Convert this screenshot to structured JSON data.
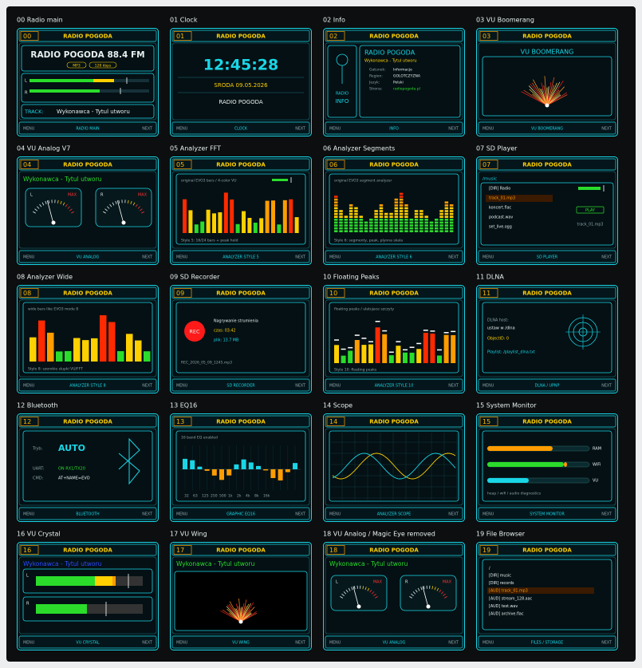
{
  "panels": [
    {
      "label": "00 Radio main",
      "number": "00",
      "title": "RADIO POGODA",
      "texts": [
        "RADIO POGODA 88.4 FM",
        "MP3",
        "128 kbps",
        "L",
        "R",
        "TRACK:",
        "Wykonawca - Tytul utworu"
      ],
      "footer": [
        "MENU",
        "RADIO MAIN",
        "NEXT"
      ]
    },
    {
      "label": "01 Clock",
      "number": "01",
      "title": "RADIO POGODA",
      "texts": [
        "12:45:28",
        "SRODA  09.05.2026",
        "RADIO POGODA"
      ],
      "footer": [
        "MENU",
        "CLOCK",
        "NEXT"
      ]
    },
    {
      "label": "02 Info",
      "number": "02",
      "title": "RADIO POGODA",
      "texts": [
        "RADIO",
        "INFO",
        "RADIO POGODA",
        "Wykonawca - Tytul utworu",
        "Gatunek:",
        "Informacje",
        "Region:",
        "GOLOTCZYZNA",
        "Jezyk:",
        "Polski",
        "Strona:",
        "radiopogoda.pl"
      ],
      "footer": [
        "MENU",
        "INFO",
        "NEXT"
      ]
    },
    {
      "label": "03 VU Boomerang",
      "number": "03",
      "title": "RADIO POGODA",
      "texts": [
        "VU BOOMERANG"
      ],
      "footer": [
        "MENU",
        "VU BOOMERANG",
        "NEXT"
      ]
    },
    {
      "label": "04 VU Analog V7",
      "number": "04",
      "title": "RADIO POGODA",
      "texts": [
        "Wykonawca - Tytul utworu",
        "L",
        "MAX",
        "R",
        "MAX"
      ],
      "footer": [
        "MENU",
        "VU ANALOG",
        "NEXT"
      ]
    },
    {
      "label": "05 Analyzer FFT",
      "number": "05",
      "title": "RADIO POGODA",
      "texts": [
        "original EVO3 bars / 4-color VU",
        "Style 5: 16/24 bars + peak hold"
      ],
      "footer": [
        "MENU",
        "ANALYZER STYLE 5",
        "NEXT"
      ]
    },
    {
      "label": "06 Analyzer Segments",
      "number": "06",
      "title": "RADIO POGODA",
      "texts": [
        "original EVO3 segment analyzer",
        "Style 6: segmenty, peak, plynna skala"
      ],
      "footer": [
        "MENU",
        "ANALYZER STYLE 6",
        "NEXT"
      ]
    },
    {
      "label": "07 SD Player",
      "number": "07",
      "title": "RADIO POGODA",
      "texts": [
        "/music",
        "[DIR] Radio",
        "track_01.mp3",
        "koncert.flac",
        "podcast.wav",
        "set_live.ogg",
        "PLAY",
        "track_01.mp3"
      ],
      "footer": [
        "MENU",
        "SD PLAYER",
        "NEXT"
      ]
    },
    {
      "label": "08 Analyzer Wide",
      "number": "08",
      "title": "RADIO POGODA",
      "texts": [
        "wide bars like EVO3 mode 8",
        "Style 8: szerokie slupki VU/FFT"
      ],
      "footer": [
        "MENU",
        "ANALYZER STYLE 8",
        "NEXT"
      ]
    },
    {
      "label": "09 SD Recorder",
      "number": "09",
      "title": "RADIO POGODA",
      "texts": [
        "REC",
        "Nagrywanie strumienia",
        "czas: 03:42",
        "plik: 13.7 MB",
        "REC_2026_05_09_1245.mp3"
      ],
      "footer": [
        "MENU",
        "SD RECORDER",
        "NEXT"
      ]
    },
    {
      "label": "10 Floating Peaks",
      "number": "10",
      "title": "RADIO POGODA",
      "texts": [
        "floating peaks / ulatujace szczyty",
        "Style 10: floating peaks"
      ],
      "footer": [
        "MENU",
        "ANALYZER STYLE 10",
        "NEXT"
      ]
    },
    {
      "label": "11 DLNA",
      "number": "11",
      "title": "RADIO POGODA",
      "texts": [
        "DLNA host:",
        "ustaw w /dlna",
        "ObjectID: 0",
        "Playlist: /playlist_dlna.txt"
      ],
      "footer": [
        "MENU",
        "DLNA / UPNP",
        "NEXT"
      ]
    },
    {
      "label": "12 Bluetooth",
      "number": "12",
      "title": "RADIO POGODA",
      "texts": [
        "Tryb:",
        "AUTO",
        "UART:",
        "ON RX1/TX20",
        "CMD:",
        "AT+NAME=EVO"
      ],
      "footer": [
        "MENU",
        "BLUETOOTH",
        "NEXT"
      ]
    },
    {
      "label": "13 EQ16",
      "number": "13",
      "title": "RADIO POGODA",
      "texts": [
        "16 band EQ enabled",
        "32",
        "63",
        "125",
        "250",
        "500",
        "1k",
        "2k",
        "4k",
        "8k",
        "16k"
      ],
      "footer": [
        "MENU",
        "GRAPHIC EQ16",
        "NEXT"
      ]
    },
    {
      "label": "14 Scope",
      "number": "14",
      "title": "RADIO POGODA",
      "footer": [
        "MENU",
        "ANALYZER SCOPE",
        "NEXT"
      ]
    },
    {
      "label": "15 System Monitor",
      "number": "15",
      "title": "RADIO POGODA",
      "texts": [
        "RAM",
        "WiFi",
        "VU",
        "heap / wifi / audio diagnostics"
      ],
      "footer": [
        "MENU",
        "SYSTEM MONITOR",
        "NEXT"
      ]
    },
    {
      "label": "16 VU Crystal",
      "number": "16",
      "title": "RADIO POGODA",
      "texts": [
        "Wykonawca - Tytul utworu",
        "L",
        "R"
      ],
      "footer": [
        "MENU",
        "VU CRYSTAL",
        "NEXT"
      ]
    },
    {
      "label": "17 VU Wing",
      "number": "17",
      "title": "RADIO POGODA",
      "texts": [
        "Wykonawca - Tytul utworu"
      ],
      "footer": [
        "MENU",
        "VU WING",
        "NEXT"
      ]
    },
    {
      "label": "18 VU Analog / Magic Eye removed",
      "number": "18",
      "title": "RADIO POGODA",
      "texts": [
        "Wykonawca - Tytul utworu",
        "L",
        "MAX",
        "R",
        "MAX"
      ],
      "footer": [
        "MENU",
        "VU ANALOG",
        "NEXT"
      ]
    },
    {
      "label": "19 File Browser",
      "number": "19",
      "title": "RADIO POGODA",
      "texts": [
        "/",
        "[DIR] music",
        "[DIR] records",
        "[AUD] track_01.mp3",
        "[AUD] stream_128.aac",
        "[AUD] test.wav",
        "[AUD] archive.flac"
      ],
      "footer": [
        "MENU",
        "FILES / STORAGE",
        "NEXT"
      ]
    }
  ]
}
